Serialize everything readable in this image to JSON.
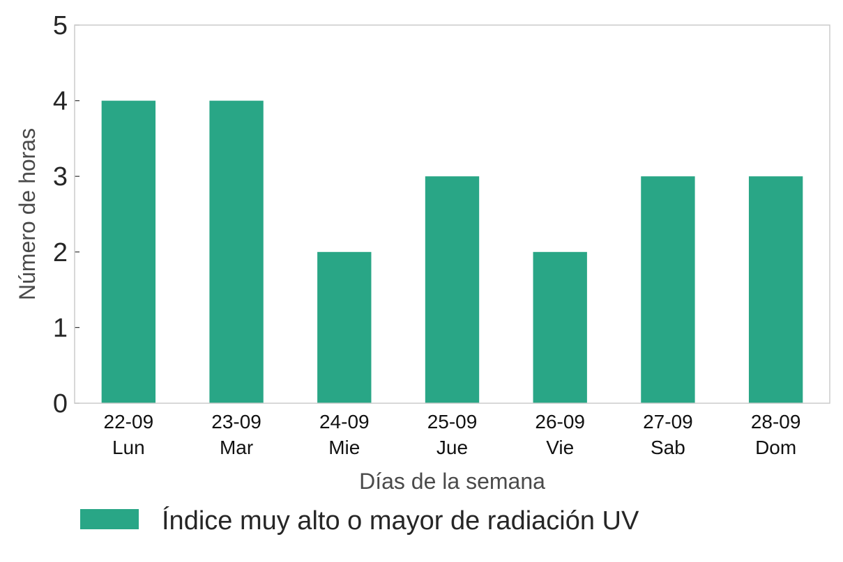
{
  "chart_data": {
    "type": "bar",
    "categories": [
      {
        "date": "22-09",
        "day": "Lun"
      },
      {
        "date": "23-09",
        "day": "Mar"
      },
      {
        "date": "24-09",
        "day": "Mie"
      },
      {
        "date": "25-09",
        "day": "Jue"
      },
      {
        "date": "26-09",
        "day": "Vie"
      },
      {
        "date": "27-09",
        "day": "Sab"
      },
      {
        "date": "28-09",
        "day": "Dom"
      }
    ],
    "series": [
      {
        "name": "Índice muy alto o mayor de radiación UV",
        "values": [
          4,
          4,
          2,
          3,
          2,
          3,
          3
        ],
        "color": "#29a686"
      }
    ],
    "xlabel": "Días de la semana",
    "ylabel": "Número de horas",
    "ylim": [
      0,
      5
    ],
    "yticks": [
      "0",
      "1",
      "2",
      "3",
      "4",
      "5"
    ],
    "grid": false,
    "legend": "bottom-left"
  }
}
